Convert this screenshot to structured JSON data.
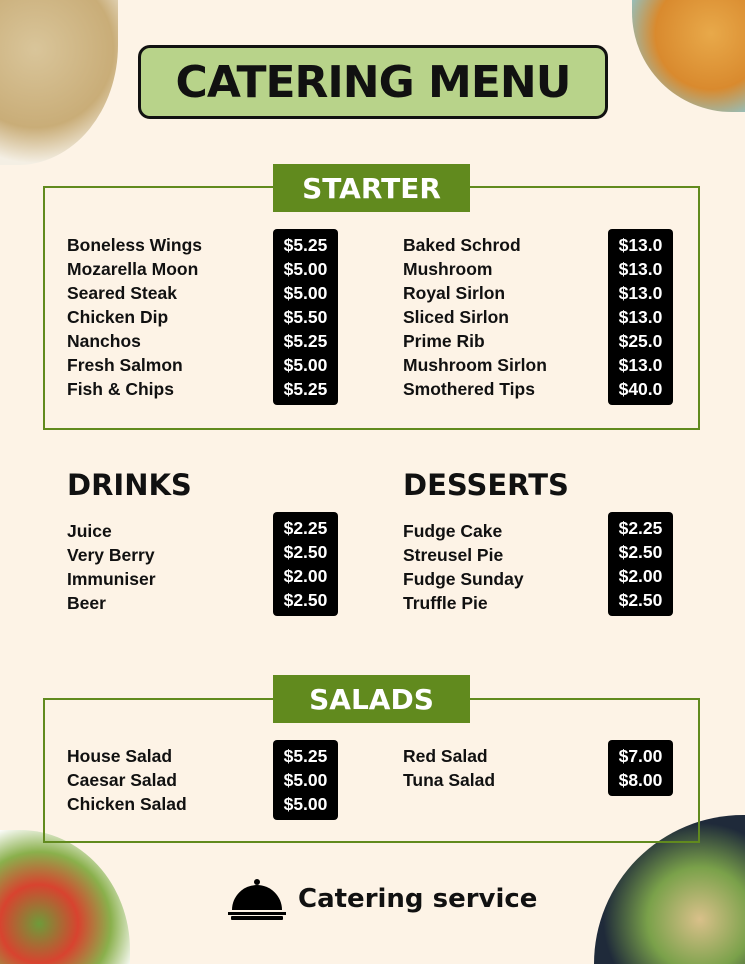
{
  "title": "CATERING MENU",
  "starter": {
    "label": "STARTER",
    "left": [
      {
        "name": "Boneless Wings",
        "price": "$5.25"
      },
      {
        "name": "Mozarella Moon",
        "price": "$5.00"
      },
      {
        "name": "Seared Steak",
        "price": "$5.00"
      },
      {
        "name": "Chicken Dip",
        "price": "$5.50"
      },
      {
        "name": "Nanchos",
        "price": "$5.25"
      },
      {
        "name": "Fresh Salmon",
        "price": "$5.00"
      },
      {
        "name": "Fish & Chips",
        "price": "$5.25"
      }
    ],
    "right": [
      {
        "name": "Baked Schrod",
        "price": "$13.0"
      },
      {
        "name": "Mushroom",
        "price": "$13.0"
      },
      {
        "name": "Royal Sirlon",
        "price": "$13.0"
      },
      {
        "name": "Sliced Sirlon",
        "price": "$13.0"
      },
      {
        "name": "Prime Rib",
        "price": "$25.0"
      },
      {
        "name": "Mushroom Sirlon",
        "price": "$13.0"
      },
      {
        "name": "Smothered Tips",
        "price": "$40.0"
      }
    ]
  },
  "drinks": {
    "label": "DRINKS",
    "items": [
      {
        "name": "Juice",
        "price": "$2.25"
      },
      {
        "name": "Very Berry",
        "price": "$2.50"
      },
      {
        "name": "Immuniser",
        "price": "$2.00"
      },
      {
        "name": "Beer",
        "price": "$2.50"
      }
    ]
  },
  "desserts": {
    "label": "DESSERTS",
    "items": [
      {
        "name": "Fudge Cake",
        "price": "$2.25"
      },
      {
        "name": "Streusel Pie",
        "price": "$2.50"
      },
      {
        "name": "Fudge Sunday",
        "price": "$2.00"
      },
      {
        "name": "Truffle Pie",
        "price": "$2.50"
      }
    ]
  },
  "salads": {
    "label": "SALADS",
    "left": [
      {
        "name": "House Salad",
        "price": "$5.25"
      },
      {
        "name": "Caesar Salad",
        "price": "$5.00"
      },
      {
        "name": "Chicken Salad",
        "price": "$5.00"
      }
    ],
    "right": [
      {
        "name": "Red Salad",
        "price": "$7.00"
      },
      {
        "name": "Tuna Salad",
        "price": "$8.00"
      }
    ]
  },
  "footer": {
    "text": "Catering service",
    "icon": "cloche-icon"
  },
  "colors": {
    "background": "#fdf3e6",
    "title_box": "#b8d38a",
    "accent_green": "#618a1e",
    "price_badge": "#000000"
  }
}
